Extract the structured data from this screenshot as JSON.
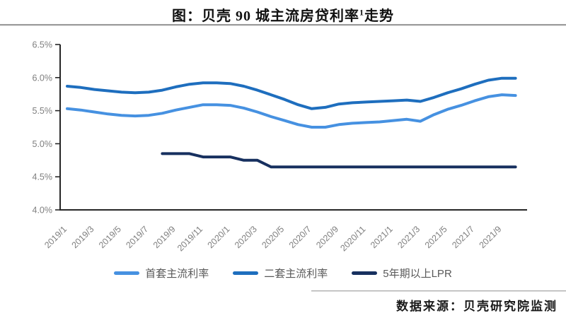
{
  "title": {
    "prefix": "图：贝壳 90 城主流房贷利率",
    "superscript": "1",
    "suffix": "走势"
  },
  "source": "数据来源：贝壳研究院监测",
  "colors": {
    "axis": "#262626",
    "tick_label": "#7f7f7f",
    "first_series": "#4691e1",
    "second_series": "#1e6ebe",
    "lpr_series": "#17305f"
  },
  "chart_data": {
    "type": "line",
    "title": "图：贝壳90城主流房贷利率1走势",
    "ylabel": "",
    "xlabel": "",
    "ylim": [
      4.0,
      6.5
    ],
    "ytick_step": 0.5,
    "ytick_labels": [
      "4.0%",
      "4.5%",
      "5.0%",
      "5.5%",
      "6.0%",
      "6.5%"
    ],
    "grid": false,
    "legend_position": "bottom",
    "x": [
      "2019/1",
      "2019/2",
      "2019/3",
      "2019/4",
      "2019/5",
      "2019/6",
      "2019/7",
      "2019/8",
      "2019/9",
      "2019/10",
      "2019/11",
      "2019/12",
      "2020/1",
      "2020/2",
      "2020/3",
      "2020/4",
      "2020/5",
      "2020/6",
      "2020/7",
      "2020/8",
      "2020/9",
      "2020/10",
      "2020/11",
      "2020/12",
      "2021/1",
      "2021/2",
      "2021/3",
      "2021/4",
      "2021/5",
      "2021/6",
      "2021/7",
      "2021/8",
      "2021/9",
      "2021/10"
    ],
    "xtick_labels": [
      "2019/1",
      "2019/3",
      "2019/5",
      "2019/7",
      "2019/9",
      "2019/11",
      "2020/1",
      "2020/3",
      "2020/5",
      "2020/7",
      "2020/9",
      "2020/11",
      "2021/1",
      "2021/3",
      "2021/5",
      "2021/7",
      "2021/9"
    ],
    "series": [
      {
        "name": "首套主流利率",
        "color_key": "first_series",
        "values": [
          5.53,
          5.51,
          5.48,
          5.45,
          5.43,
          5.42,
          5.43,
          5.46,
          5.51,
          5.55,
          5.59,
          5.59,
          5.58,
          5.54,
          5.48,
          5.41,
          5.35,
          5.29,
          5.25,
          5.25,
          5.29,
          5.31,
          5.32,
          5.33,
          5.35,
          5.37,
          5.34,
          5.44,
          5.52,
          5.58,
          5.65,
          5.71,
          5.74,
          5.73
        ]
      },
      {
        "name": "二套主流利率",
        "color_key": "second_series",
        "values": [
          5.87,
          5.85,
          5.82,
          5.8,
          5.78,
          5.77,
          5.78,
          5.81,
          5.86,
          5.9,
          5.92,
          5.92,
          5.91,
          5.87,
          5.81,
          5.74,
          5.67,
          5.59,
          5.53,
          5.55,
          5.6,
          5.62,
          5.63,
          5.64,
          5.65,
          5.66,
          5.64,
          5.7,
          5.77,
          5.83,
          5.9,
          5.96,
          5.99,
          5.99
        ]
      },
      {
        "name": "5年期以上LPR",
        "color_key": "lpr_series",
        "values": [
          null,
          null,
          null,
          null,
          null,
          null,
          null,
          4.85,
          4.85,
          4.85,
          4.8,
          4.8,
          4.8,
          4.75,
          4.75,
          4.65,
          4.65,
          4.65,
          4.65,
          4.65,
          4.65,
          4.65,
          4.65,
          4.65,
          4.65,
          4.65,
          4.65,
          4.65,
          4.65,
          4.65,
          4.65,
          4.65,
          4.65,
          4.65
        ]
      }
    ]
  }
}
